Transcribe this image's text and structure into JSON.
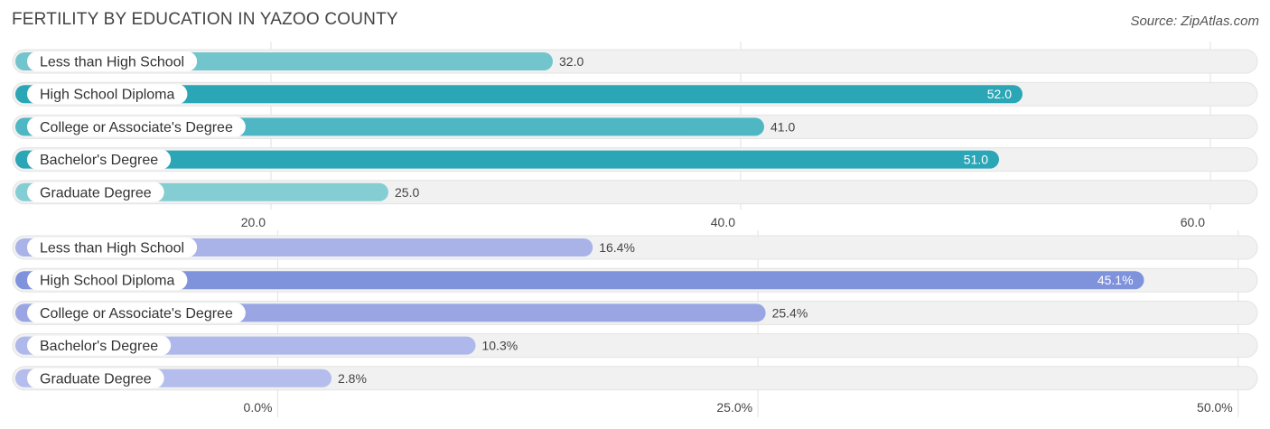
{
  "header": {
    "title": "FERTILITY BY EDUCATION IN YAZOO COUNTY",
    "source": "Source: ZipAtlas.com"
  },
  "chart_data": [
    {
      "type": "bar",
      "orientation": "horizontal",
      "categories": [
        "Less than High School",
        "High School Diploma",
        "College or Associate's Degree",
        "Bachelor's Degree",
        "Graduate Degree"
      ],
      "values": [
        32.0,
        52.0,
        41.0,
        51.0,
        25.0
      ],
      "value_labels": [
        "32.0",
        "52.0",
        "41.0",
        "51.0",
        "25.0"
      ],
      "xlim": [
        9.0,
        62.0
      ],
      "ticks": [
        20.0,
        40.0,
        60.0
      ],
      "tick_labels": [
        "20.0",
        "40.0",
        "60.0"
      ],
      "bar_colors": [
        "#72c5cc",
        "#2aa6b6",
        "#4fb7c4",
        "#2aa6b6",
        "#84ced3"
      ],
      "grid": true
    },
    {
      "type": "bar",
      "orientation": "horizontal",
      "categories": [
        "Less than High School",
        "High School Diploma",
        "College or Associate's Degree",
        "Bachelor's Degree",
        "Graduate Degree"
      ],
      "values": [
        16.4,
        45.1,
        25.4,
        10.3,
        2.8
      ],
      "value_labels": [
        "16.4%",
        "45.1%",
        "25.4%",
        "10.3%",
        "2.8%"
      ],
      "xlim": [
        -13.8,
        51.0
      ],
      "ticks": [
        0.0,
        25.0,
        50.0
      ],
      "tick_labels": [
        "0.0%",
        "25.0%",
        "50.0%"
      ],
      "bar_colors": [
        "#a9b3e8",
        "#7f92dc",
        "#9aa6e4",
        "#aeb8ea",
        "#b4bdec"
      ],
      "grid": true
    }
  ]
}
